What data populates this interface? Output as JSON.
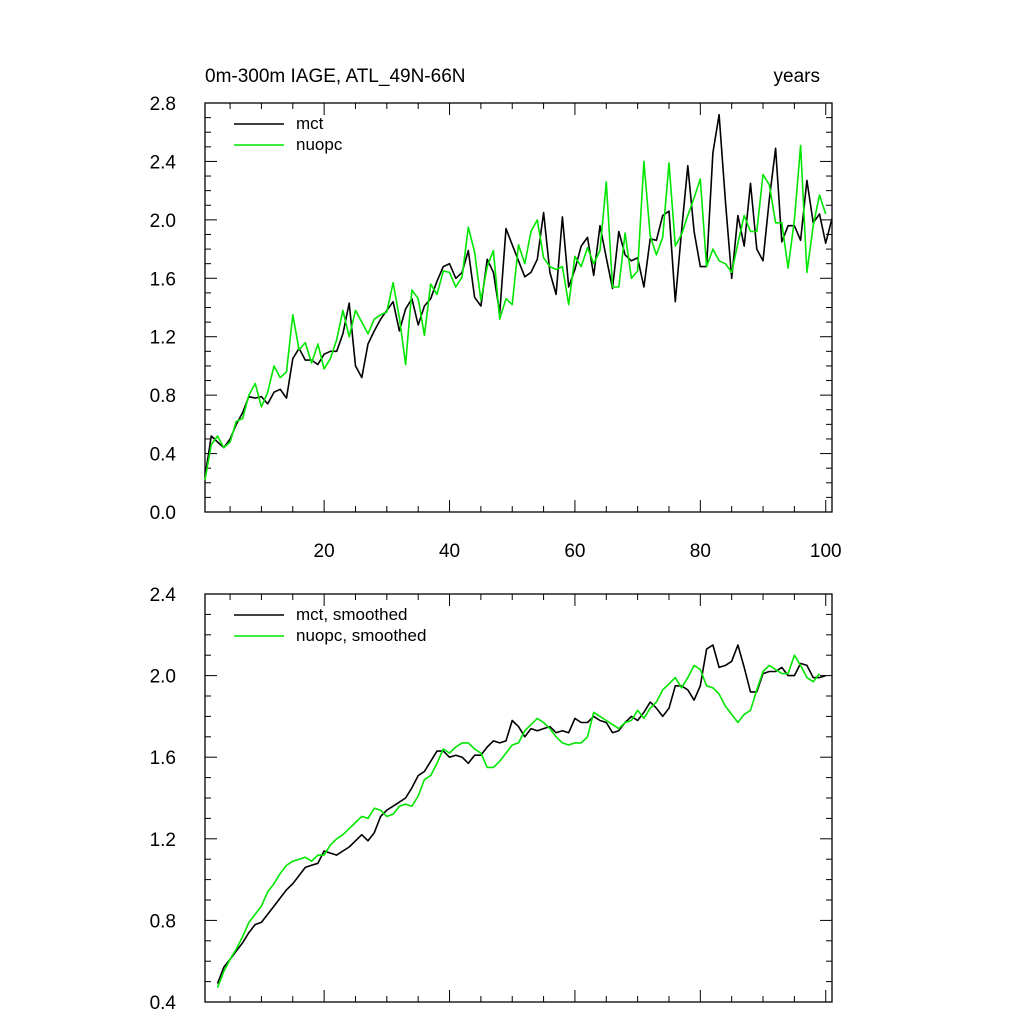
{
  "figure": {
    "title_left": "0m-300m IAGE, ATL_49N-66N",
    "title_right": "years"
  },
  "chart_data": [
    {
      "type": "line",
      "title": "0m-300m IAGE, ATL_49N-66N",
      "units": "years",
      "xlim": [
        1,
        101
      ],
      "ylim": [
        0.0,
        2.8
      ],
      "x_ticks": [
        20,
        40,
        60,
        80,
        100
      ],
      "y_ticks": [
        0.0,
        0.4,
        0.8,
        1.2,
        1.6,
        2.0,
        2.4,
        2.8
      ],
      "y_tick_labels": [
        "0.0",
        "0.4",
        "0.8",
        "1.2",
        "1.6",
        "2.0",
        "2.4",
        "2.8"
      ],
      "x_start": 1,
      "legend": "top-left",
      "series": [
        {
          "name": "mct",
          "color": "#000000",
          "values": [
            0.24,
            0.52,
            0.48,
            0.44,
            0.5,
            0.6,
            0.68,
            0.79,
            0.78,
            0.79,
            0.74,
            0.82,
            0.84,
            0.78,
            1.05,
            1.12,
            1.04,
            1.04,
            1.01,
            1.08,
            1.1,
            1.1,
            1.22,
            1.43,
            1.0,
            0.92,
            1.15,
            1.24,
            1.32,
            1.38,
            1.44,
            1.24,
            1.39,
            1.46,
            1.28,
            1.41,
            1.46,
            1.58,
            1.68,
            1.7,
            1.6,
            1.64,
            1.79,
            1.47,
            1.41,
            1.73,
            1.64,
            1.36,
            1.94,
            1.83,
            1.72,
            1.61,
            1.64,
            1.73,
            2.05,
            1.64,
            1.49,
            2.02,
            1.54,
            1.66,
            1.82,
            1.88,
            1.62,
            1.96,
            1.74,
            1.53,
            1.92,
            1.76,
            1.72,
            1.74,
            1.54,
            1.87,
            1.86,
            2.03,
            2.06,
            1.44,
            1.92,
            2.37,
            1.92,
            1.68,
            1.68,
            2.46,
            2.72,
            2.13,
            1.6,
            2.03,
            1.82,
            2.25,
            1.8,
            1.72,
            2.14,
            2.49,
            1.85,
            1.96,
            1.96,
            1.86,
            2.27,
            1.98,
            2.04,
            1.84,
            2.01
          ]
        },
        {
          "name": "nuopc",
          "color": "#00e600",
          "values": [
            0.22,
            0.46,
            0.52,
            0.44,
            0.48,
            0.62,
            0.64,
            0.8,
            0.88,
            0.72,
            0.82,
            1.0,
            0.92,
            0.96,
            1.35,
            1.11,
            1.16,
            1.02,
            1.15,
            0.98,
            1.05,
            1.18,
            1.38,
            1.2,
            1.38,
            1.3,
            1.22,
            1.32,
            1.35,
            1.37,
            1.57,
            1.33,
            1.01,
            1.52,
            1.46,
            1.21,
            1.56,
            1.49,
            1.65,
            1.64,
            1.54,
            1.61,
            1.95,
            1.78,
            1.45,
            1.68,
            1.79,
            1.32,
            1.46,
            1.42,
            1.83,
            1.7,
            1.92,
            2.0,
            1.74,
            1.68,
            1.66,
            1.68,
            1.42,
            1.75,
            1.68,
            1.81,
            1.7,
            1.79,
            2.26,
            1.54,
            1.54,
            1.91,
            1.6,
            1.65,
            2.4,
            1.89,
            1.76,
            1.88,
            2.39,
            1.82,
            1.9,
            2.03,
            2.15,
            2.28,
            1.68,
            1.8,
            1.72,
            1.7,
            1.64,
            1.84,
            2.03,
            1.92,
            1.92,
            2.31,
            2.24,
            1.98,
            1.98,
            1.67,
            2.0,
            2.51,
            1.64,
            1.96,
            2.17,
            2.04
          ]
        }
      ]
    },
    {
      "type": "line",
      "title": "",
      "units": "years",
      "xlim": [
        1,
        101
      ],
      "ylim": [
        0.4,
        2.4
      ],
      "x_ticks": [
        20,
        40,
        60,
        80,
        100
      ],
      "y_ticks": [
        0.4,
        0.8,
        1.2,
        1.6,
        2.0,
        2.4
      ],
      "y_tick_labels": [
        "0.4",
        "0.8",
        "1.2",
        "1.6",
        "2.0",
        "2.4"
      ],
      "x_start": 3,
      "legend": "top-left",
      "series": [
        {
          "name": "mct, smoothed",
          "color": "#000000",
          "values": [
            0.49,
            0.57,
            0.61,
            0.65,
            0.69,
            0.74,
            0.78,
            0.79,
            0.83,
            0.87,
            0.91,
            0.95,
            0.98,
            1.02,
            1.06,
            1.07,
            1.08,
            1.14,
            1.13,
            1.12,
            1.14,
            1.16,
            1.19,
            1.22,
            1.19,
            1.23,
            1.31,
            1.34,
            1.36,
            1.38,
            1.4,
            1.45,
            1.51,
            1.53,
            1.58,
            1.63,
            1.63,
            1.6,
            1.61,
            1.6,
            1.57,
            1.61,
            1.61,
            1.65,
            1.68,
            1.67,
            1.68,
            1.78,
            1.75,
            1.7,
            1.74,
            1.73,
            1.74,
            1.75,
            1.72,
            1.73,
            1.72,
            1.79,
            1.77,
            1.77,
            1.8,
            1.78,
            1.77,
            1.72,
            1.73,
            1.77,
            1.8,
            1.78,
            1.82,
            1.87,
            1.84,
            1.8,
            1.84,
            1.95,
            1.95,
            1.93,
            1.88,
            1.95,
            2.13,
            2.15,
            2.04,
            2.05,
            2.07,
            2.15,
            2.04,
            1.92,
            1.92,
            2.01,
            2.02,
            2.02,
            2.04,
            2.0,
            2.0,
            2.06,
            2.05,
            1.99,
            1.99,
            2.0
          ]
        },
        {
          "name": "nuopc, smoothed",
          "color": "#00e600",
          "values": [
            0.47,
            0.55,
            0.61,
            0.66,
            0.72,
            0.79,
            0.83,
            0.87,
            0.94,
            0.98,
            1.03,
            1.07,
            1.09,
            1.1,
            1.11,
            1.09,
            1.12,
            1.12,
            1.17,
            1.2,
            1.22,
            1.25,
            1.28,
            1.31,
            1.3,
            1.35,
            1.34,
            1.31,
            1.32,
            1.36,
            1.37,
            1.36,
            1.41,
            1.49,
            1.51,
            1.57,
            1.64,
            1.62,
            1.65,
            1.67,
            1.67,
            1.64,
            1.62,
            1.55,
            1.55,
            1.58,
            1.62,
            1.66,
            1.67,
            1.73,
            1.76,
            1.79,
            1.77,
            1.74,
            1.7,
            1.67,
            1.66,
            1.67,
            1.67,
            1.7,
            1.82,
            1.8,
            1.78,
            1.76,
            1.74,
            1.77,
            1.78,
            1.83,
            1.79,
            1.84,
            1.87,
            1.93,
            1.96,
            1.99,
            1.94,
            1.99,
            2.05,
            2.03,
            1.95,
            1.94,
            1.91,
            1.85,
            1.81,
            1.77,
            1.81,
            1.83,
            1.93,
            2.02,
            2.05,
            2.03,
            2.01,
            2.01,
            2.1,
            2.05,
            1.99,
            1.97,
            2.01
          ]
        }
      ]
    }
  ]
}
